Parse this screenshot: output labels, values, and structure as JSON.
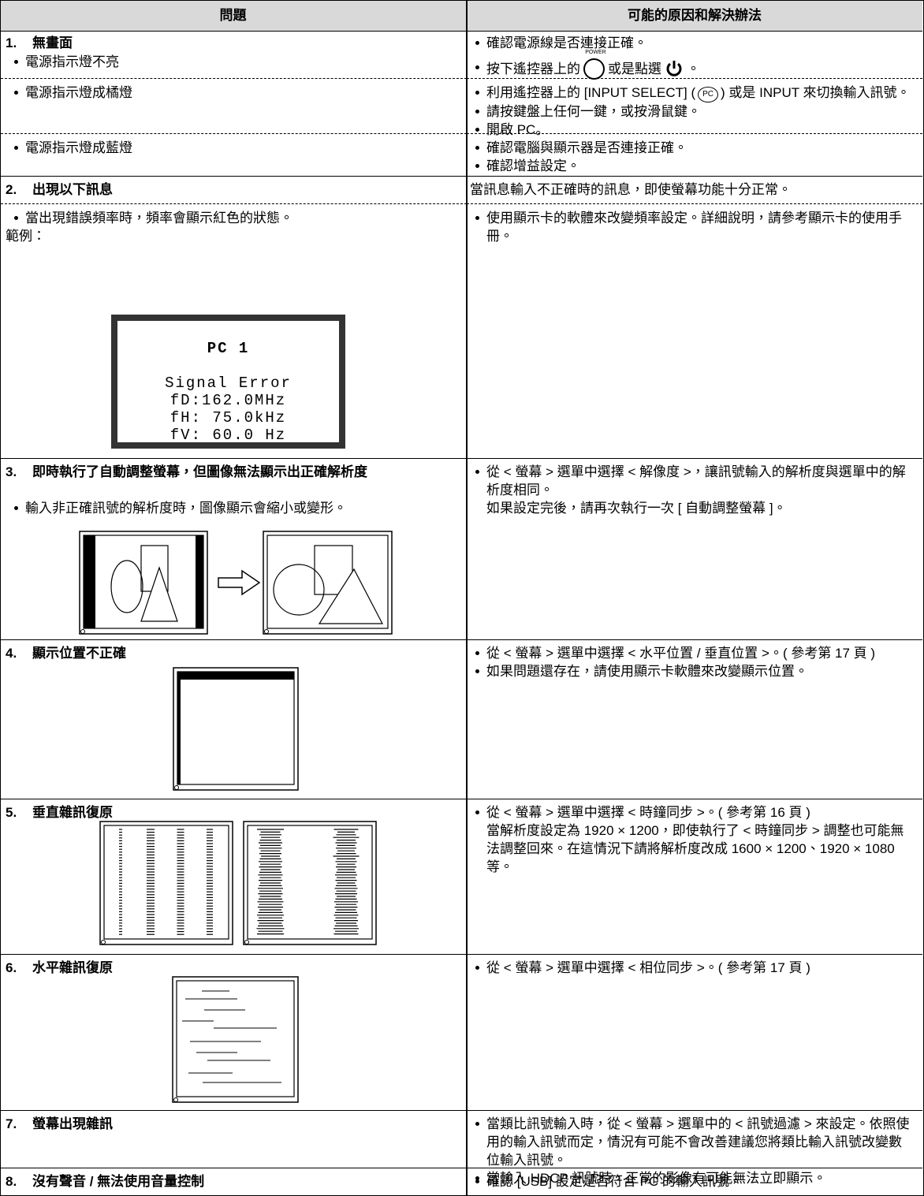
{
  "table": {
    "header": {
      "problem": "問題",
      "solution": "可能的原因和解決辦法"
    },
    "rows": [
      {
        "number": "1.",
        "title": "無畫面",
        "cases": [
          {
            "problem": "電源指示燈不亮",
            "solutions": [
              "確認電源線是否連接正確。",
              {
                "before": "按下遙控器上的",
                "icon_label": "POWER",
                "middle": "或是點選",
                "after": "。"
              }
            ]
          },
          {
            "problem": "電源指示燈成橘燈",
            "solutions": [
              {
                "before": "利用遙控器上的 [INPUT SELECT] (",
                "icon_label": "PC",
                "after": ") 或是 INPUT 來切換輸入訊號。"
              },
              "請按鍵盤上任何一鍵，或按滑鼠鍵。",
              "開啟 PC。"
            ]
          },
          {
            "problem": "電源指示燈成藍燈",
            "solutions": [
              "確認電腦與顯示器是否連接正確。",
              "確認增益設定。"
            ]
          }
        ]
      },
      {
        "number": "2.",
        "title": "出現以下訊息",
        "summary": "當訊息輸入不正確時的訊息，即使螢幕功能十分正常。",
        "cases": [
          {
            "problem": "當出現錯誤頻率時，頻率會顯示紅色的狀態。",
            "example_label": "範例：",
            "example_screen": {
              "title": "PC 1",
              "lines": [
                "Signal Error",
                "fD:162.0MHz",
                "fH: 75.0kHz",
                "fV: 60.0 Hz"
              ]
            },
            "solutions": [
              "使用顯示卡的軟體來改變頻率設定。詳細說明，請參考顯示卡的使用手冊。"
            ]
          }
        ]
      },
      {
        "number": "3.",
        "title": "即時執行了自動調整螢幕，但圖像無法顯示出正確解析度",
        "problem_items": [
          "輸入非正確訊號的解析度時，圖像顯示會縮小或變形。"
        ],
        "solutions": [
          "從 < 螢幕 > 選單中選擇 < 解像度 >，讓訊號輸入的解析度與選單中的解析度相同。"
        ],
        "solution_note": "如果設定完後，請再次執行一次 [ 自動調整螢幕 ]。"
      },
      {
        "number": "4.",
        "title": "顯示位置不正確",
        "solutions": [
          "從 < 螢幕 > 選單中選擇 < 水平位置 / 垂直位置 >。( 參考第 17 頁 )",
          "如果問題還存在，請使用顯示卡軟體來改變顯示位置。"
        ]
      },
      {
        "number": "5.",
        "title": "垂直雜訊復原",
        "solutions": [
          "從 < 螢幕 > 選單中選擇 < 時鐘同步 >。( 參考第 16 頁 )"
        ],
        "solution_note": "當解析度設定為 1920 × 1200，即使執行了 < 時鐘同步 > 調整也可能無法調整回來。在這情況下請將解析度改成 1600 × 1200、1920 × 1080 等。"
      },
      {
        "number": "6.",
        "title": "水平雜訊復原",
        "solutions": [
          "從 < 螢幕 > 選單中選擇 < 相位同步 >。( 參考第 17 頁 )"
        ]
      },
      {
        "number": "7.",
        "title": "螢幕出現雜訊",
        "solutions": [
          "當類比訊號輸入時，從 < 螢幕 > 選單中的 < 訊號過濾 > 來設定。依照使用的輸入訊號而定，情況有可能不會改善建議您將類比輸入訊號改變數位輸入訊號。",
          "當輸入 HDCP 訊號時，正常的影像有可能無法立即顯示。"
        ]
      },
      {
        "number": "8.",
        "title": "沒有聲音 / 無法使用音量控制",
        "solutions": [
          "確認 [USB] 設定是否符合 PC 的輸入訊號。"
        ]
      }
    ]
  }
}
